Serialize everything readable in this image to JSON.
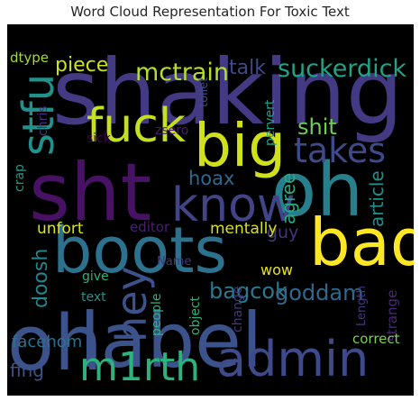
{
  "chart_data": {
    "type": "wordcloud",
    "title": "Word Cloud Representation For Toxic Text",
    "background": "#000000",
    "colormap": "viridis",
    "words": [
      {
        "text": "shaking",
        "color": "#443983"
      },
      {
        "text": "oh",
        "color": "#3b528b"
      },
      {
        "text": "sht",
        "color": "#471164"
      },
      {
        "text": "oh",
        "color": "#277f8e"
      },
      {
        "text": "label",
        "color": "#3b528b"
      },
      {
        "text": "boots",
        "color": "#2c728e"
      },
      {
        "text": "bad",
        "color": "#fde725"
      },
      {
        "text": "big",
        "color": "#d0e11c"
      },
      {
        "text": "admin",
        "color": "#3e4a89"
      },
      {
        "text": "fuck",
        "color": "#c5e021"
      },
      {
        "text": "know",
        "color": "#414487"
      },
      {
        "text": "stfu",
        "color": "#21918c"
      },
      {
        "text": "m1rth",
        "color": "#2db27d"
      },
      {
        "text": "hey",
        "color": "#3b528b"
      },
      {
        "text": "takes",
        "color": "#3e4a89"
      },
      {
        "text": "mctrain",
        "color": "#b5de2b"
      },
      {
        "text": "suckerdick",
        "color": "#20a386"
      },
      {
        "text": "piece",
        "color": "#cde11d"
      },
      {
        "text": "talk",
        "color": "#3e4a89"
      },
      {
        "text": "dtype",
        "color": "#a2da37"
      },
      {
        "text": "shit",
        "color": "#6ece58"
      },
      {
        "text": "hoax",
        "color": "#31688e"
      },
      {
        "text": "agree",
        "color": "#25ab82"
      },
      {
        "text": "article",
        "color": "#21918c"
      },
      {
        "text": "doosh",
        "color": "#25848e"
      },
      {
        "text": "guy",
        "color": "#46337e"
      },
      {
        "text": "unfort",
        "color": "#dde318"
      },
      {
        "text": "editor",
        "color": "#482173"
      },
      {
        "text": "mentally",
        "color": "#d8e219"
      },
      {
        "text": "bagcok",
        "color": "#2a788e"
      },
      {
        "text": "goddam",
        "color": "#31688e"
      },
      {
        "text": "facehom",
        "color": "#2c728e"
      },
      {
        "text": "fing",
        "color": "#3b528b"
      },
      {
        "text": "wow",
        "color": "#e5e419"
      },
      {
        "text": "give",
        "color": "#2db27d"
      },
      {
        "text": "text",
        "color": "#21918c"
      },
      {
        "text": "Name",
        "color": "#46337e"
      },
      {
        "text": "people",
        "color": "#2db27d"
      },
      {
        "text": "object",
        "color": "#2db27d"
      },
      {
        "text": "change",
        "color": "#453781"
      },
      {
        "text": "Length",
        "color": "#453781"
      },
      {
        "text": "strange",
        "color": "#482878"
      },
      {
        "text": "correct",
        "color": "#7ad151"
      },
      {
        "text": "crap",
        "color": "#1f9a8a"
      },
      {
        "text": "chris",
        "color": "#472d7b"
      },
      {
        "text": "sick",
        "color": "#440154"
      },
      {
        "text": "zsero",
        "color": "#481b6d"
      },
      {
        "text": "toilet",
        "color": "#3e4a89"
      },
      {
        "text": "pervert",
        "color": "#1fa188"
      }
    ]
  }
}
